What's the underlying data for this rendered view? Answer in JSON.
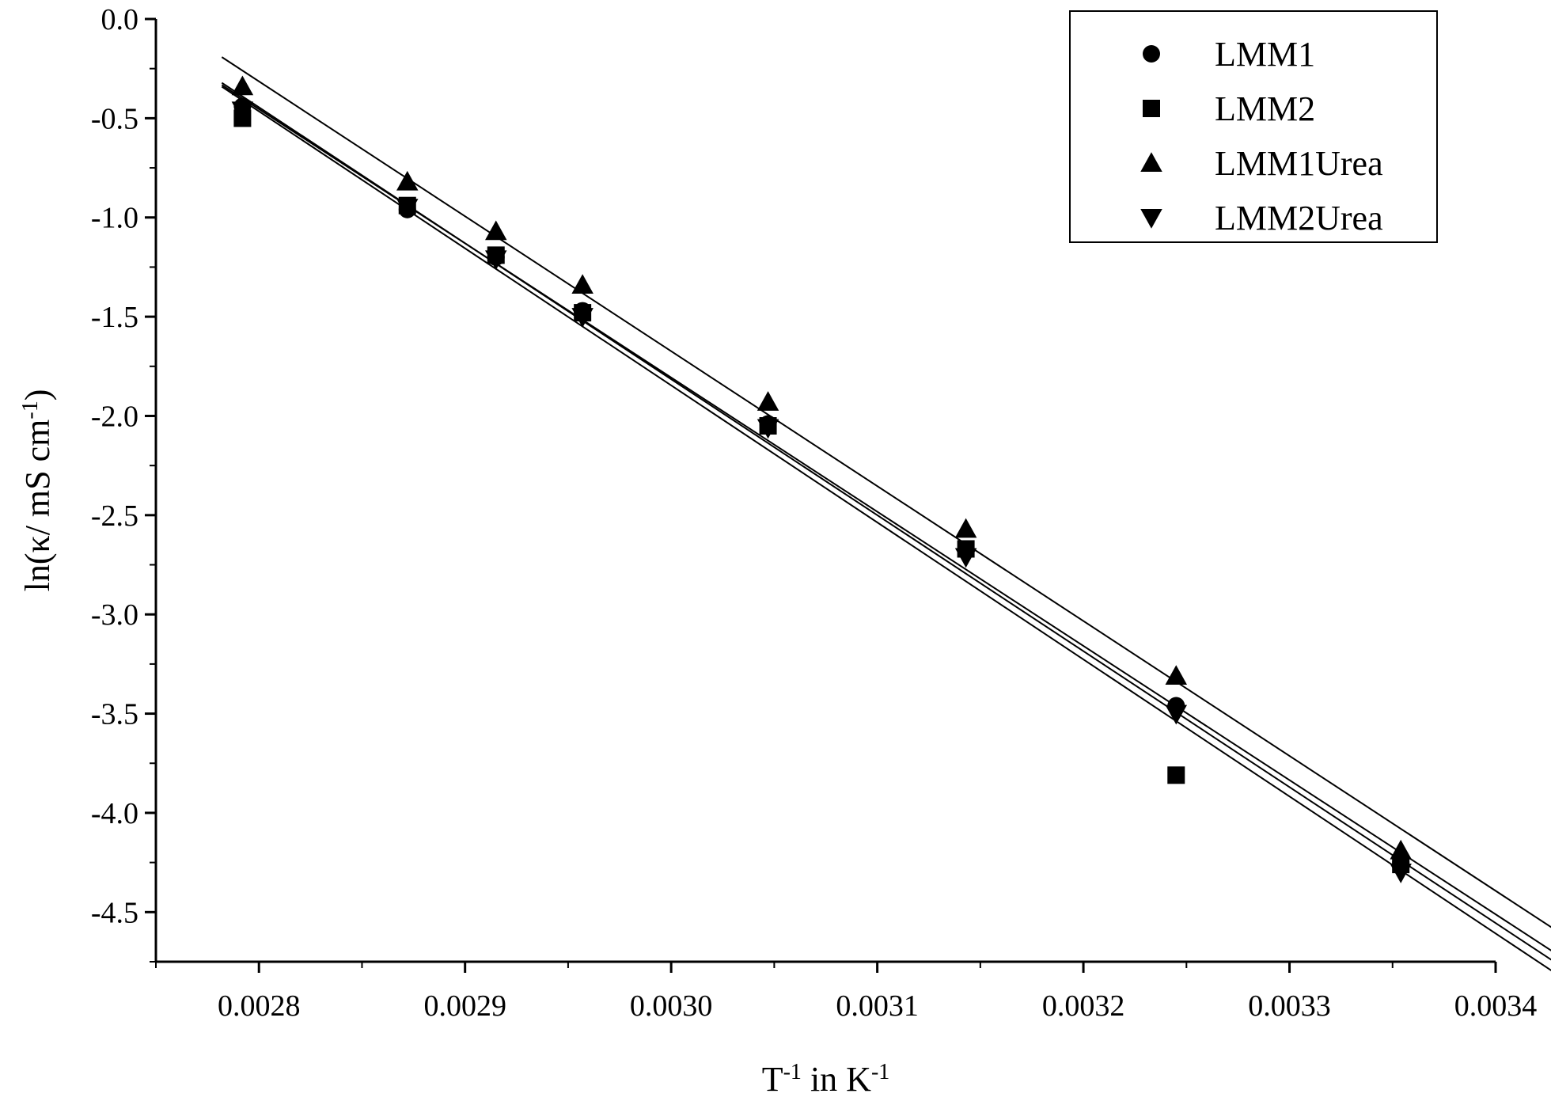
{
  "chart_data": {
    "type": "scatter",
    "xlabel": "T<sup>-1</sup> in K<sup>-1</sup>",
    "xlabel_parts": [
      "T",
      "-1",
      " in K",
      "-1"
    ],
    "ylabel_parts": [
      "ln(κ/ mS cm",
      "-1",
      ")"
    ],
    "xlim": [
      0.00275,
      0.0034
    ],
    "ylim": [
      -4.75,
      0.0
    ],
    "x_ticks": [
      0.0028,
      0.0029,
      0.003,
      0.0031,
      0.0032,
      0.0033,
      0.0034
    ],
    "x_tick_labels": [
      "0.0028",
      "0.0029",
      "0.0030",
      "0.0031",
      "0.0032",
      "0.0033",
      "0.0034"
    ],
    "y_ticks": [
      0.0,
      -0.5,
      -1.0,
      -1.5,
      -2.0,
      -2.5,
      -3.0,
      -3.5,
      -4.0,
      -4.5
    ],
    "y_tick_labels": [
      "0.0",
      "-0.5",
      "-1.0",
      "-1.5",
      "-2.0",
      "-2.5",
      "-3.0",
      "-3.5",
      "-4.0",
      "-4.5"
    ],
    "grid": false,
    "legend_position": "top-right",
    "series": [
      {
        "name": "LMM1",
        "marker": "circle",
        "x": [
          0.002792,
          0.002872,
          0.002915,
          0.002957,
          0.003047,
          0.003143,
          0.003245,
          0.003354
        ],
        "y": [
          -0.44,
          -0.96,
          -1.2,
          -1.47,
          -2.04,
          -2.68,
          -3.46,
          -4.25
        ],
        "fit": [
          [
            0.002792,
            -0.4
          ],
          [
            0.003354,
            -4.2
          ]
        ]
      },
      {
        "name": "LMM2",
        "marker": "square",
        "x": [
          0.002792,
          0.002872,
          0.002915,
          0.002957,
          0.003047,
          0.003143,
          0.003245,
          0.003354
        ],
        "y": [
          -0.5,
          -0.94,
          -1.19,
          -1.48,
          -2.05,
          -2.67,
          -3.81,
          -4.26
        ],
        "fit": [
          [
            0.002792,
            -0.41
          ],
          [
            0.003354,
            -4.29
          ]
        ]
      },
      {
        "name": "LMM1Urea",
        "marker": "triangle-up",
        "x": [
          0.002792,
          0.002872,
          0.002915,
          0.002957,
          0.003047,
          0.003143,
          0.003245,
          0.003354
        ],
        "y": [
          -0.34,
          -0.82,
          -1.07,
          -1.34,
          -1.93,
          -2.57,
          -3.31,
          -4.19
        ],
        "fit": [
          [
            0.002792,
            -0.26
          ],
          [
            0.003354,
            -4.08
          ]
        ]
      },
      {
        "name": "LMM2Urea",
        "marker": "triangle-down",
        "x": [
          0.002792,
          0.002872,
          0.002915,
          0.002957,
          0.003047,
          0.003143,
          0.003245,
          0.003354
        ],
        "y": [
          -0.46,
          -0.95,
          -1.21,
          -1.5,
          -2.06,
          -2.71,
          -3.5,
          -4.3
        ],
        "fit": [
          [
            0.002792,
            -0.39
          ],
          [
            0.003354,
            -4.24
          ]
        ]
      }
    ]
  }
}
